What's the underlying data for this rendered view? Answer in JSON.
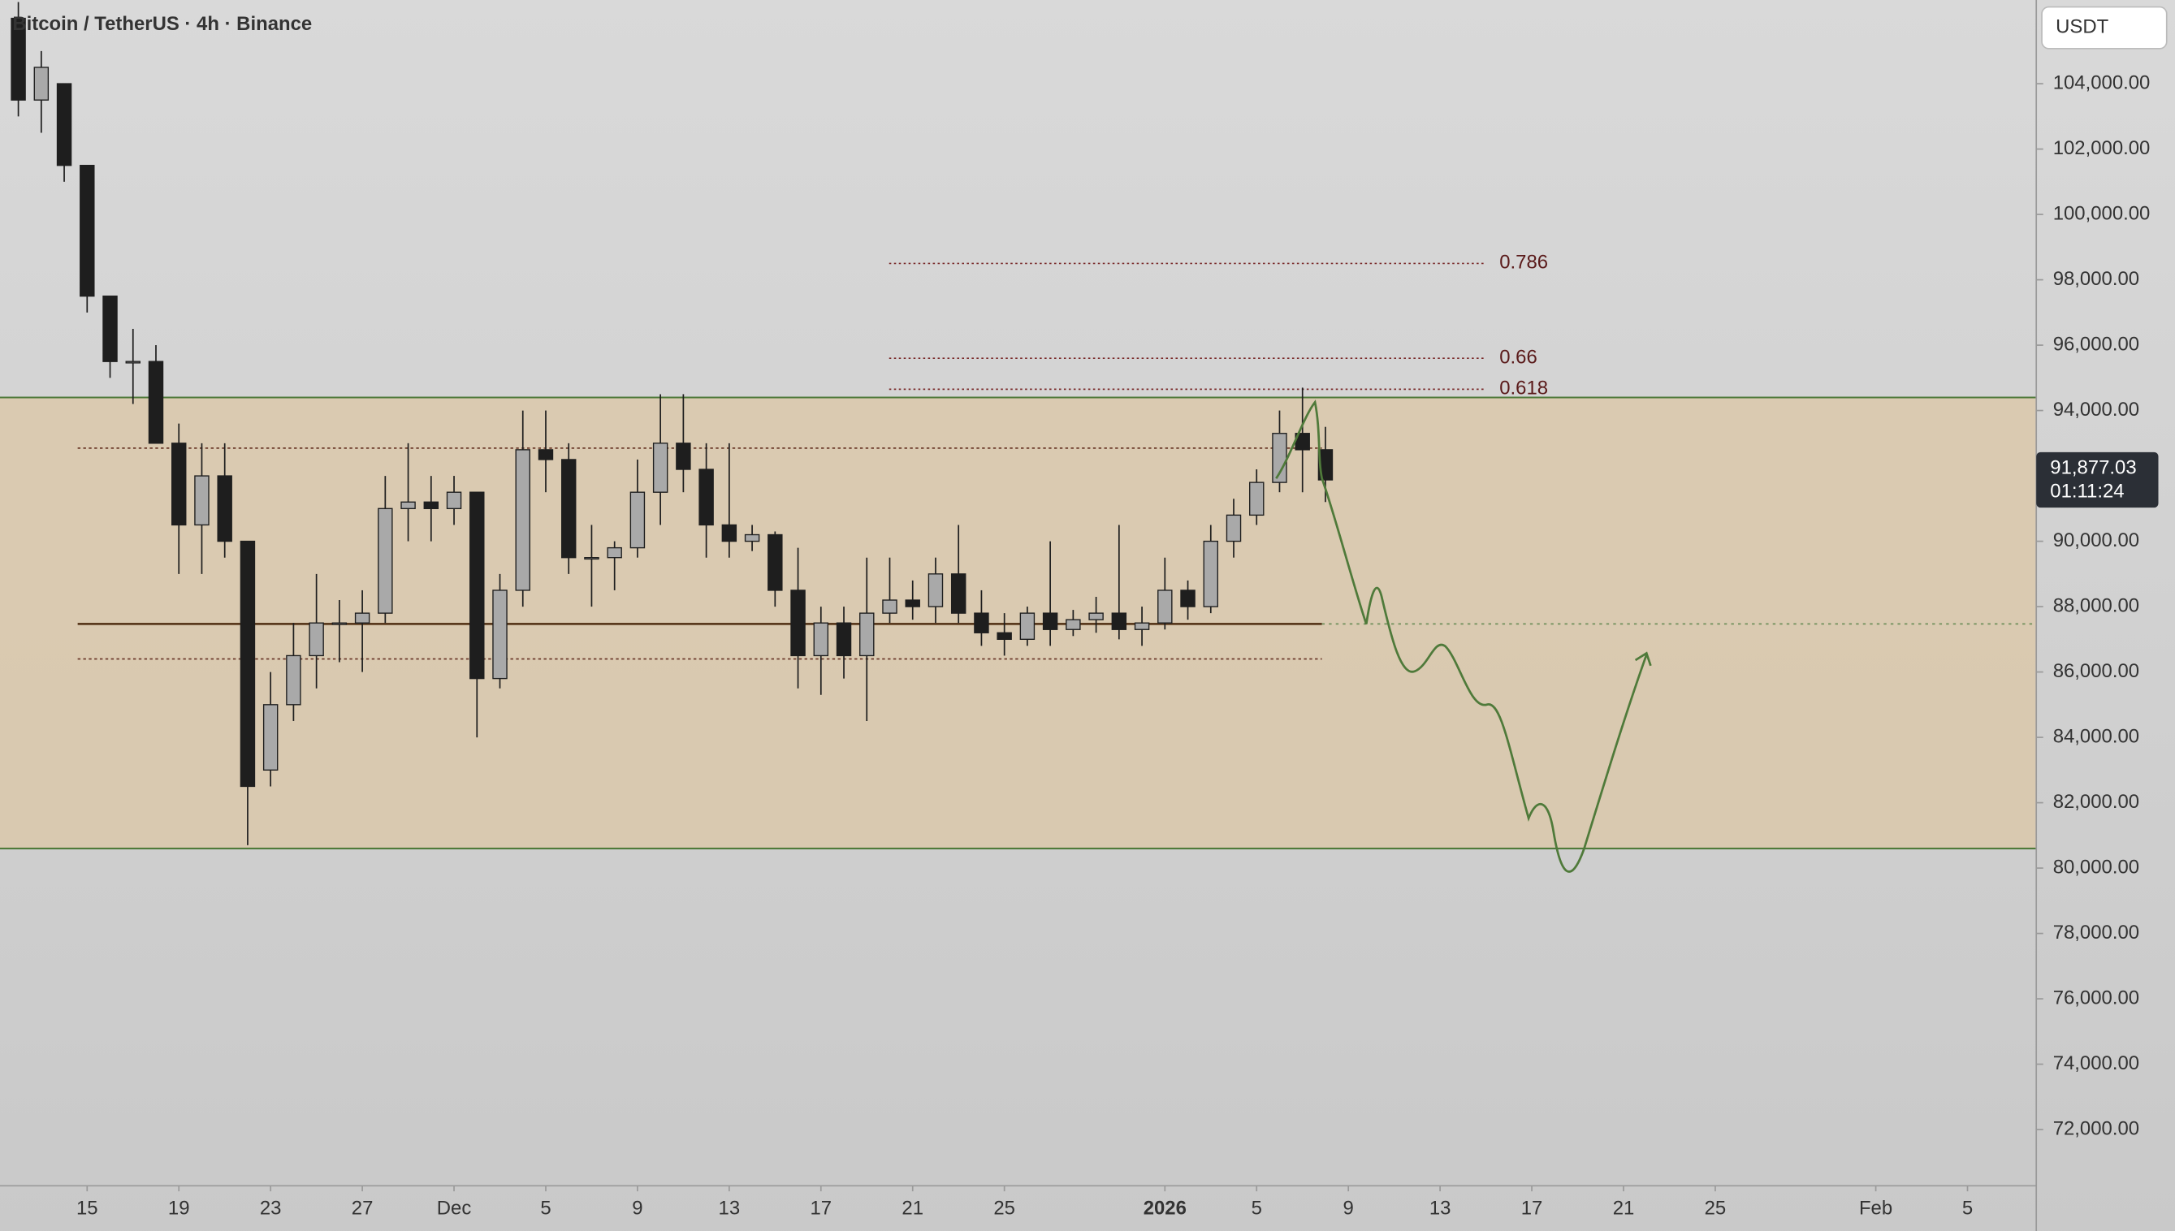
{
  "chart_data": {
    "type": "candlestick",
    "title": "Bitcoin / TetherUS · 4h · Binance",
    "currency": "USDT",
    "x": [
      -50,
      -49,
      -48,
      -47,
      -46,
      -45,
      -44,
      -43,
      -42,
      -41,
      -40,
      -39,
      -38,
      -37,
      -36,
      -35,
      -34,
      -33,
      -32,
      -31,
      -30,
      -29,
      -28,
      -27,
      -26,
      -25,
      -24,
      -23,
      -22,
      -21,
      -20,
      -19,
      -18,
      -17,
      -16,
      -15,
      -14,
      -13,
      -12,
      -11,
      -10,
      -9,
      -8,
      -7,
      -6,
      -5,
      -4,
      -3,
      -2,
      -1,
      0,
      1,
      2,
      3,
      4,
      5,
      6,
      7
    ],
    "open": [
      106000,
      103500,
      104000,
      101500,
      97500,
      95500,
      95500,
      93000,
      90500,
      92000,
      90000,
      83000,
      85000,
      86500,
      87500,
      87500,
      87800,
      91000,
      91200,
      91000,
      91500,
      85800,
      88500,
      92800,
      92500,
      89500,
      89500,
      89800,
      91500,
      93000,
      92200,
      90500,
      90000,
      90200,
      88500,
      86500,
      87500,
      86500,
      87800,
      88200,
      88000,
      89000,
      87800,
      87200,
      87000,
      87800,
      87300,
      87600,
      87800,
      87300,
      87500,
      88500,
      88000,
      90000,
      90800,
      91800,
      93300,
      92800
    ],
    "high": [
      106500,
      105000,
      104000,
      101500,
      97500,
      96500,
      96000,
      93600,
      93000,
      93000,
      90000,
      86000,
      87500,
      89000,
      88200,
      88500,
      92000,
      93000,
      92000,
      92000,
      91500,
      89000,
      94000,
      94000,
      93000,
      90500,
      90000,
      92500,
      94500,
      94500,
      93000,
      93000,
      90500,
      90300,
      89800,
      88000,
      88000,
      89500,
      89500,
      88800,
      89500,
      90500,
      88500,
      87800,
      88000,
      90000,
      87900,
      88300,
      90500,
      88000,
      89500,
      88800,
      90500,
      91300,
      92200,
      94000,
      94700,
      93500
    ],
    "low": [
      103000,
      102500,
      101000,
      97000,
      95000,
      94200,
      93200,
      89000,
      89000,
      89500,
      80700,
      82500,
      84500,
      85500,
      86300,
      86000,
      87500,
      90000,
      90000,
      90500,
      84000,
      85500,
      88000,
      91500,
      89000,
      88000,
      88500,
      89500,
      90500,
      91500,
      89500,
      89500,
      89700,
      88000,
      85500,
      85300,
      85800,
      84500,
      87500,
      87600,
      87500,
      87500,
      86800,
      86500,
      86800,
      86800,
      87100,
      87200,
      87000,
      86800,
      87300,
      87600,
      87800,
      89500,
      90500,
      91500,
      91500,
      91200
    ],
    "close": [
      103500,
      104500,
      101500,
      97500,
      95500,
      95500,
      93000,
      90500,
      92000,
      90000,
      82500,
      85000,
      86500,
      87500,
      87500,
      87800,
      91000,
      91200,
      91000,
      91500,
      85800,
      88500,
      92800,
      92500,
      89500,
      89500,
      89800,
      91500,
      93000,
      92200,
      90500,
      90000,
      90200,
      88500,
      86500,
      87500,
      86500,
      87800,
      88200,
      88000,
      89000,
      87800,
      87200,
      87000,
      87800,
      87300,
      87600,
      87800,
      87300,
      87500,
      88500,
      88000,
      90000,
      90800,
      91800,
      93300,
      92800,
      91877.03
    ],
    "up_color": "#a9a9a9",
    "down_color": "#1e1e1e",
    "xlim": [
      -50.8,
      38.0
    ],
    "ylim": [
      70280,
      106560
    ],
    "xticks": [
      {
        "value": -47,
        "label": "15"
      },
      {
        "value": -43,
        "label": "19"
      },
      {
        "value": -39,
        "label": "23"
      },
      {
        "value": -35,
        "label": "27"
      },
      {
        "value": -31,
        "label": "Dec"
      },
      {
        "value": -27,
        "label": "5"
      },
      {
        "value": -23,
        "label": "9"
      },
      {
        "value": -19,
        "label": "13"
      },
      {
        "value": -15,
        "label": "17"
      },
      {
        "value": -11,
        "label": "21"
      },
      {
        "value": -7,
        "label": "25"
      },
      {
        "value": 0,
        "label": "2026"
      },
      {
        "value": 4,
        "label": "5"
      },
      {
        "value": 8,
        "label": "9"
      },
      {
        "value": 12,
        "label": "13"
      },
      {
        "value": 16,
        "label": "17"
      },
      {
        "value": 20,
        "label": "21"
      },
      {
        "value": 24,
        "label": "25"
      },
      {
        "value": 31,
        "label": "Feb"
      },
      {
        "value": 35,
        "label": "5"
      }
    ],
    "yticks": [
      {
        "value": 72000,
        "label": "72,000.00"
      },
      {
        "value": 74000,
        "label": "74,000.00"
      },
      {
        "value": 76000,
        "label": "76,000.00"
      },
      {
        "value": 78000,
        "label": "78,000.00"
      },
      {
        "value": 80000,
        "label": "80,000.00"
      },
      {
        "value": 82000,
        "label": "82,000.00"
      },
      {
        "value": 84000,
        "label": "84,000.00"
      },
      {
        "value": 86000,
        "label": "86,000.00"
      },
      {
        "value": 88000,
        "label": "88,000.00"
      },
      {
        "value": 90000,
        "label": "90,000.00"
      },
      {
        "value": 94000,
        "label": "94,000.00"
      },
      {
        "value": 96000,
        "label": "96,000.00"
      },
      {
        "value": 98000,
        "label": "98,000.00"
      },
      {
        "value": 100000,
        "label": "100,000.00"
      },
      {
        "value": 102000,
        "label": "102,000.00"
      },
      {
        "value": 104000,
        "label": "104,000.00"
      }
    ],
    "range_box": [
      80600,
      94400
    ],
    "box_color": "#4f7a3a",
    "levels": [
      {
        "value": 92850,
        "style": "dotted"
      },
      {
        "value": 87470,
        "style": "solid"
      },
      {
        "value": 86400,
        "style": "dotted"
      }
    ],
    "fib_levels": [
      {
        "label": "0.786",
        "value": 98500
      },
      {
        "label": "0.66",
        "value": 95600
      },
      {
        "label": "0.618",
        "value": 94650
      }
    ],
    "last_price": {
      "value": 91877.03,
      "label": "91,877.03",
      "countdown": "01:11:24"
    }
  }
}
